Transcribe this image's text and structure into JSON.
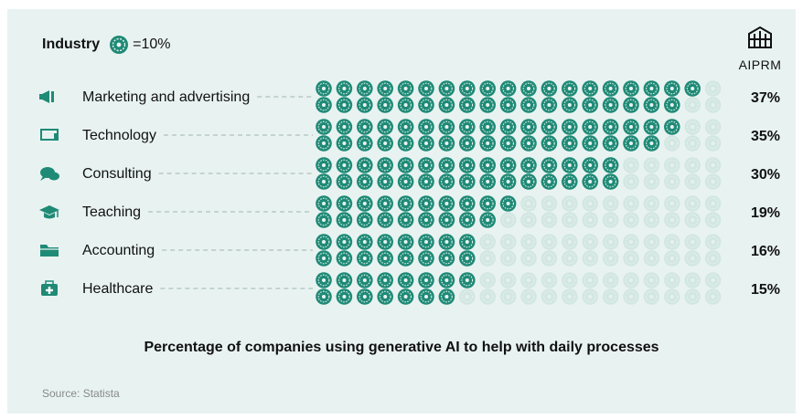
{
  "legend": {
    "title": "Industry",
    "unit_label": "=10%",
    "icon": "ai-brain-icon"
  },
  "brand": {
    "name": "AIPRM",
    "icon": "aiprm-logo-icon"
  },
  "caption": "Percentage of companies using generative AI to help with daily processes",
  "source": "Source: Statista",
  "colors": {
    "background": "#e8f3f1",
    "filled": "#1f8a76",
    "empty": "#d3e7e2",
    "leader": "#9fb3ae",
    "text": "#111111"
  },
  "chart_data": {
    "type": "bar",
    "title": "",
    "categories": [
      "Marketing and advertising",
      "Technology",
      "Consulting",
      "Teaching",
      "Accounting",
      "Healthcare"
    ],
    "icons": [
      "megaphone-icon",
      "laptop-icon",
      "chat-bubbles-icon",
      "graduation-cap-icon",
      "folder-icon",
      "first-aid-kit-icon"
    ],
    "values": [
      37,
      35,
      30,
      19,
      16,
      15
    ],
    "value_labels": [
      "37%",
      "35%",
      "30%",
      "19%",
      "16%",
      "15%"
    ],
    "units_per_icon_percent": 1,
    "icons_per_row": 2,
    "total_units": 40
  }
}
